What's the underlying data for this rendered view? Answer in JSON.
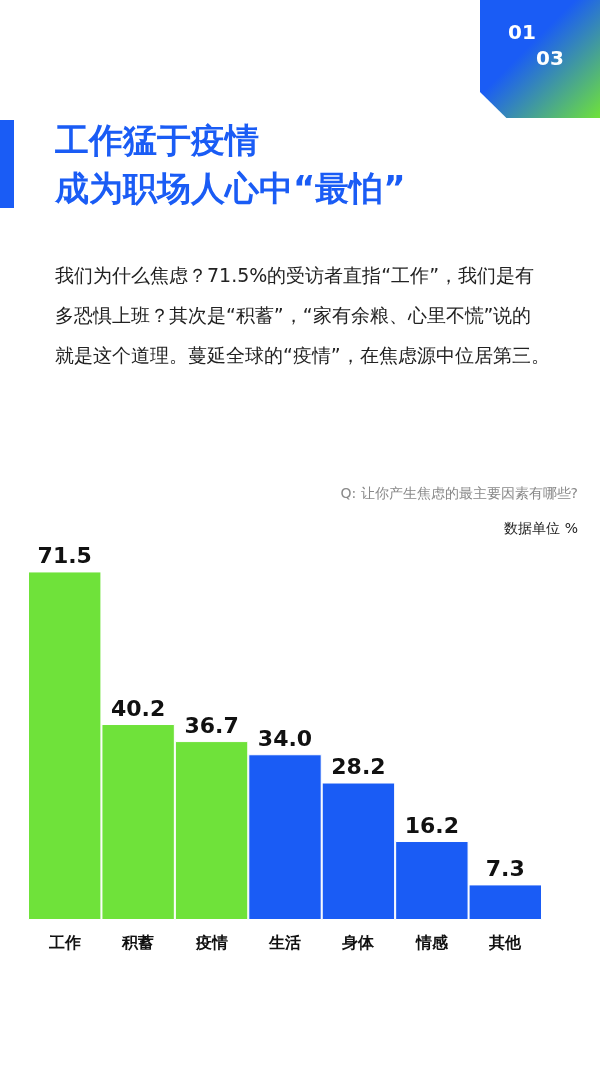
{
  "chart_data": {
    "type": "bar",
    "title": "工作猛于疫情成为职场人心中“最怕”",
    "subtitle": "我们为什么焦虑？71.5%的受访者直指“工作”，我们是有多恐惧上班？其次是“积蓄”，“家有余粮、心里不慌”说的就是这个道理。蔓延全球的“疫情”，在焦虑源中位居第三。",
    "categories": [
      "工作",
      "积蓄",
      "疫情",
      "生活",
      "身体",
      "情感",
      "其他"
    ],
    "values": [
      71.5,
      40.2,
      36.7,
      34.0,
      28.2,
      16.2,
      7.3
    ],
    "value_labels": [
      "71.5",
      "40.2",
      "36.7",
      "34.0",
      "28.2",
      "16.2",
      "7.3"
    ],
    "colors": [
      "#6fe23a",
      "#6fe23a",
      "#6fe23a",
      "#1a5cf5",
      "#1a5cf5",
      "#1a5cf5",
      "#1a5cf5"
    ],
    "annotations": [
      "Q: 让你产生焦虑的最主要因素有哪些?",
      "数据单位 %",
      "01",
      "03"
    ],
    "grid": false
  }
}
